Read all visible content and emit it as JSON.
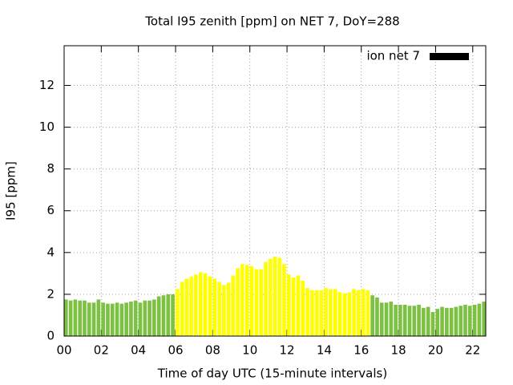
{
  "chart_data": {
    "type": "bar",
    "title": "Total I95 zenith [ppm] on NET 7, DoY=288",
    "xlabel": "Time of day UTC (15-minute intervals)",
    "ylabel": "I95 [ppm]",
    "x": [
      0,
      0.25,
      0.5,
      0.75,
      1,
      1.25,
      1.5,
      1.75,
      2,
      2.25,
      2.5,
      2.75,
      3,
      3.25,
      3.5,
      3.75,
      4,
      4.25,
      4.5,
      4.75,
      5,
      5.25,
      5.5,
      5.75,
      6,
      6.25,
      6.5,
      6.75,
      7,
      7.25,
      7.5,
      7.75,
      8,
      8.25,
      8.5,
      8.75,
      9,
      9.25,
      9.5,
      9.75,
      10,
      10.25,
      10.5,
      10.75,
      11,
      11.25,
      11.5,
      11.75,
      12,
      12.25,
      12.5,
      12.75,
      13,
      13.25,
      13.5,
      13.75,
      14,
      14.25,
      14.5,
      14.75,
      15,
      15.25,
      15.5,
      15.75,
      16,
      16.25,
      16.5,
      16.75,
      17,
      17.25,
      17.5,
      17.75,
      18,
      18.25,
      18.5,
      18.75,
      19,
      19.25,
      19.5,
      19.75,
      20,
      20.25,
      20.5,
      20.75,
      21,
      21.25,
      21.5,
      21.75,
      22,
      22.25,
      22.5
    ],
    "series": [
      {
        "name": "ion net 7",
        "color": "#000000",
        "values": [
          1.75,
          1.7,
          1.75,
          1.7,
          1.7,
          1.6,
          1.6,
          1.75,
          1.6,
          1.55,
          1.55,
          1.6,
          1.55,
          1.6,
          1.65,
          1.7,
          1.6,
          1.7,
          1.7,
          1.75,
          1.9,
          1.95,
          2.0,
          2.0,
          2.25,
          2.6,
          2.75,
          2.85,
          2.95,
          3.05,
          3.0,
          2.85,
          2.75,
          2.6,
          2.45,
          2.55,
          2.9,
          3.25,
          3.45,
          3.4,
          3.35,
          3.2,
          3.2,
          3.55,
          3.7,
          3.8,
          3.75,
          3.45,
          2.95,
          2.8,
          2.9,
          2.65,
          2.3,
          2.2,
          2.2,
          2.2,
          2.3,
          2.25,
          2.25,
          2.1,
          2.05,
          2.1,
          2.25,
          2.2,
          2.25,
          2.2,
          1.95,
          1.85,
          1.6,
          1.6,
          1.65,
          1.5,
          1.5,
          1.5,
          1.45,
          1.45,
          1.5,
          1.35,
          1.4,
          1.15,
          1.3,
          1.4,
          1.35,
          1.35,
          1.4,
          1.45,
          1.5,
          1.45,
          1.5,
          1.55,
          1.65
        ],
        "bar_colors": [
          "#7cc142",
          "#7cc142",
          "#7cc142",
          "#7cc142",
          "#7cc142",
          "#7cc142",
          "#7cc142",
          "#7cc142",
          "#7cc142",
          "#7cc142",
          "#7cc142",
          "#7cc142",
          "#7cc142",
          "#7cc142",
          "#7cc142",
          "#7cc142",
          "#7cc142",
          "#7cc142",
          "#7cc142",
          "#7cc142",
          "#7cc142",
          "#7cc142",
          "#7cc142",
          "#7cc142",
          "#ffff00",
          "#ffff00",
          "#ffff00",
          "#ffff00",
          "#ffff00",
          "#ffff00",
          "#ffff00",
          "#ffff00",
          "#ffff00",
          "#ffff00",
          "#ffff00",
          "#ffff00",
          "#ffff00",
          "#ffff00",
          "#ffff00",
          "#ffff00",
          "#ffff00",
          "#ffff00",
          "#ffff00",
          "#ffff00",
          "#ffff00",
          "#ffff00",
          "#ffff00",
          "#ffff00",
          "#ffff00",
          "#ffff00",
          "#ffff00",
          "#ffff00",
          "#ffff00",
          "#ffff00",
          "#ffff00",
          "#ffff00",
          "#ffff00",
          "#ffff00",
          "#ffff00",
          "#ffff00",
          "#ffff00",
          "#ffff00",
          "#ffff00",
          "#ffff00",
          "#ffff00",
          "#ffff00",
          "#7cc142",
          "#7cc142",
          "#7cc142",
          "#7cc142",
          "#7cc142",
          "#7cc142",
          "#7cc142",
          "#7cc142",
          "#7cc142",
          "#7cc142",
          "#7cc142",
          "#7cc142",
          "#7cc142",
          "#7cc142",
          "#7cc142",
          "#7cc142",
          "#7cc142",
          "#7cc142",
          "#7cc142",
          "#7cc142",
          "#7cc142",
          "#7cc142",
          "#7cc142",
          "#7cc142",
          "#7cc142"
        ]
      }
    ],
    "bar_width": 0.2,
    "xlim": [
      0,
      22.7
    ],
    "xticks": [
      {
        "value": 0,
        "label": "00"
      },
      {
        "value": 2,
        "label": "02"
      },
      {
        "value": 4,
        "label": "04"
      },
      {
        "value": 6,
        "label": "06"
      },
      {
        "value": 8,
        "label": "08"
      },
      {
        "value": 10,
        "label": "10"
      },
      {
        "value": 12,
        "label": "12"
      },
      {
        "value": 14,
        "label": "14"
      },
      {
        "value": 16,
        "label": "16"
      },
      {
        "value": 18,
        "label": "18"
      },
      {
        "value": 20,
        "label": "20"
      },
      {
        "value": 22,
        "label": "22"
      }
    ],
    "ylim": [
      0,
      13.9
    ],
    "yticks": [
      0,
      2,
      4,
      6,
      8,
      10,
      12
    ],
    "grid": true,
    "legend": "top-right"
  }
}
